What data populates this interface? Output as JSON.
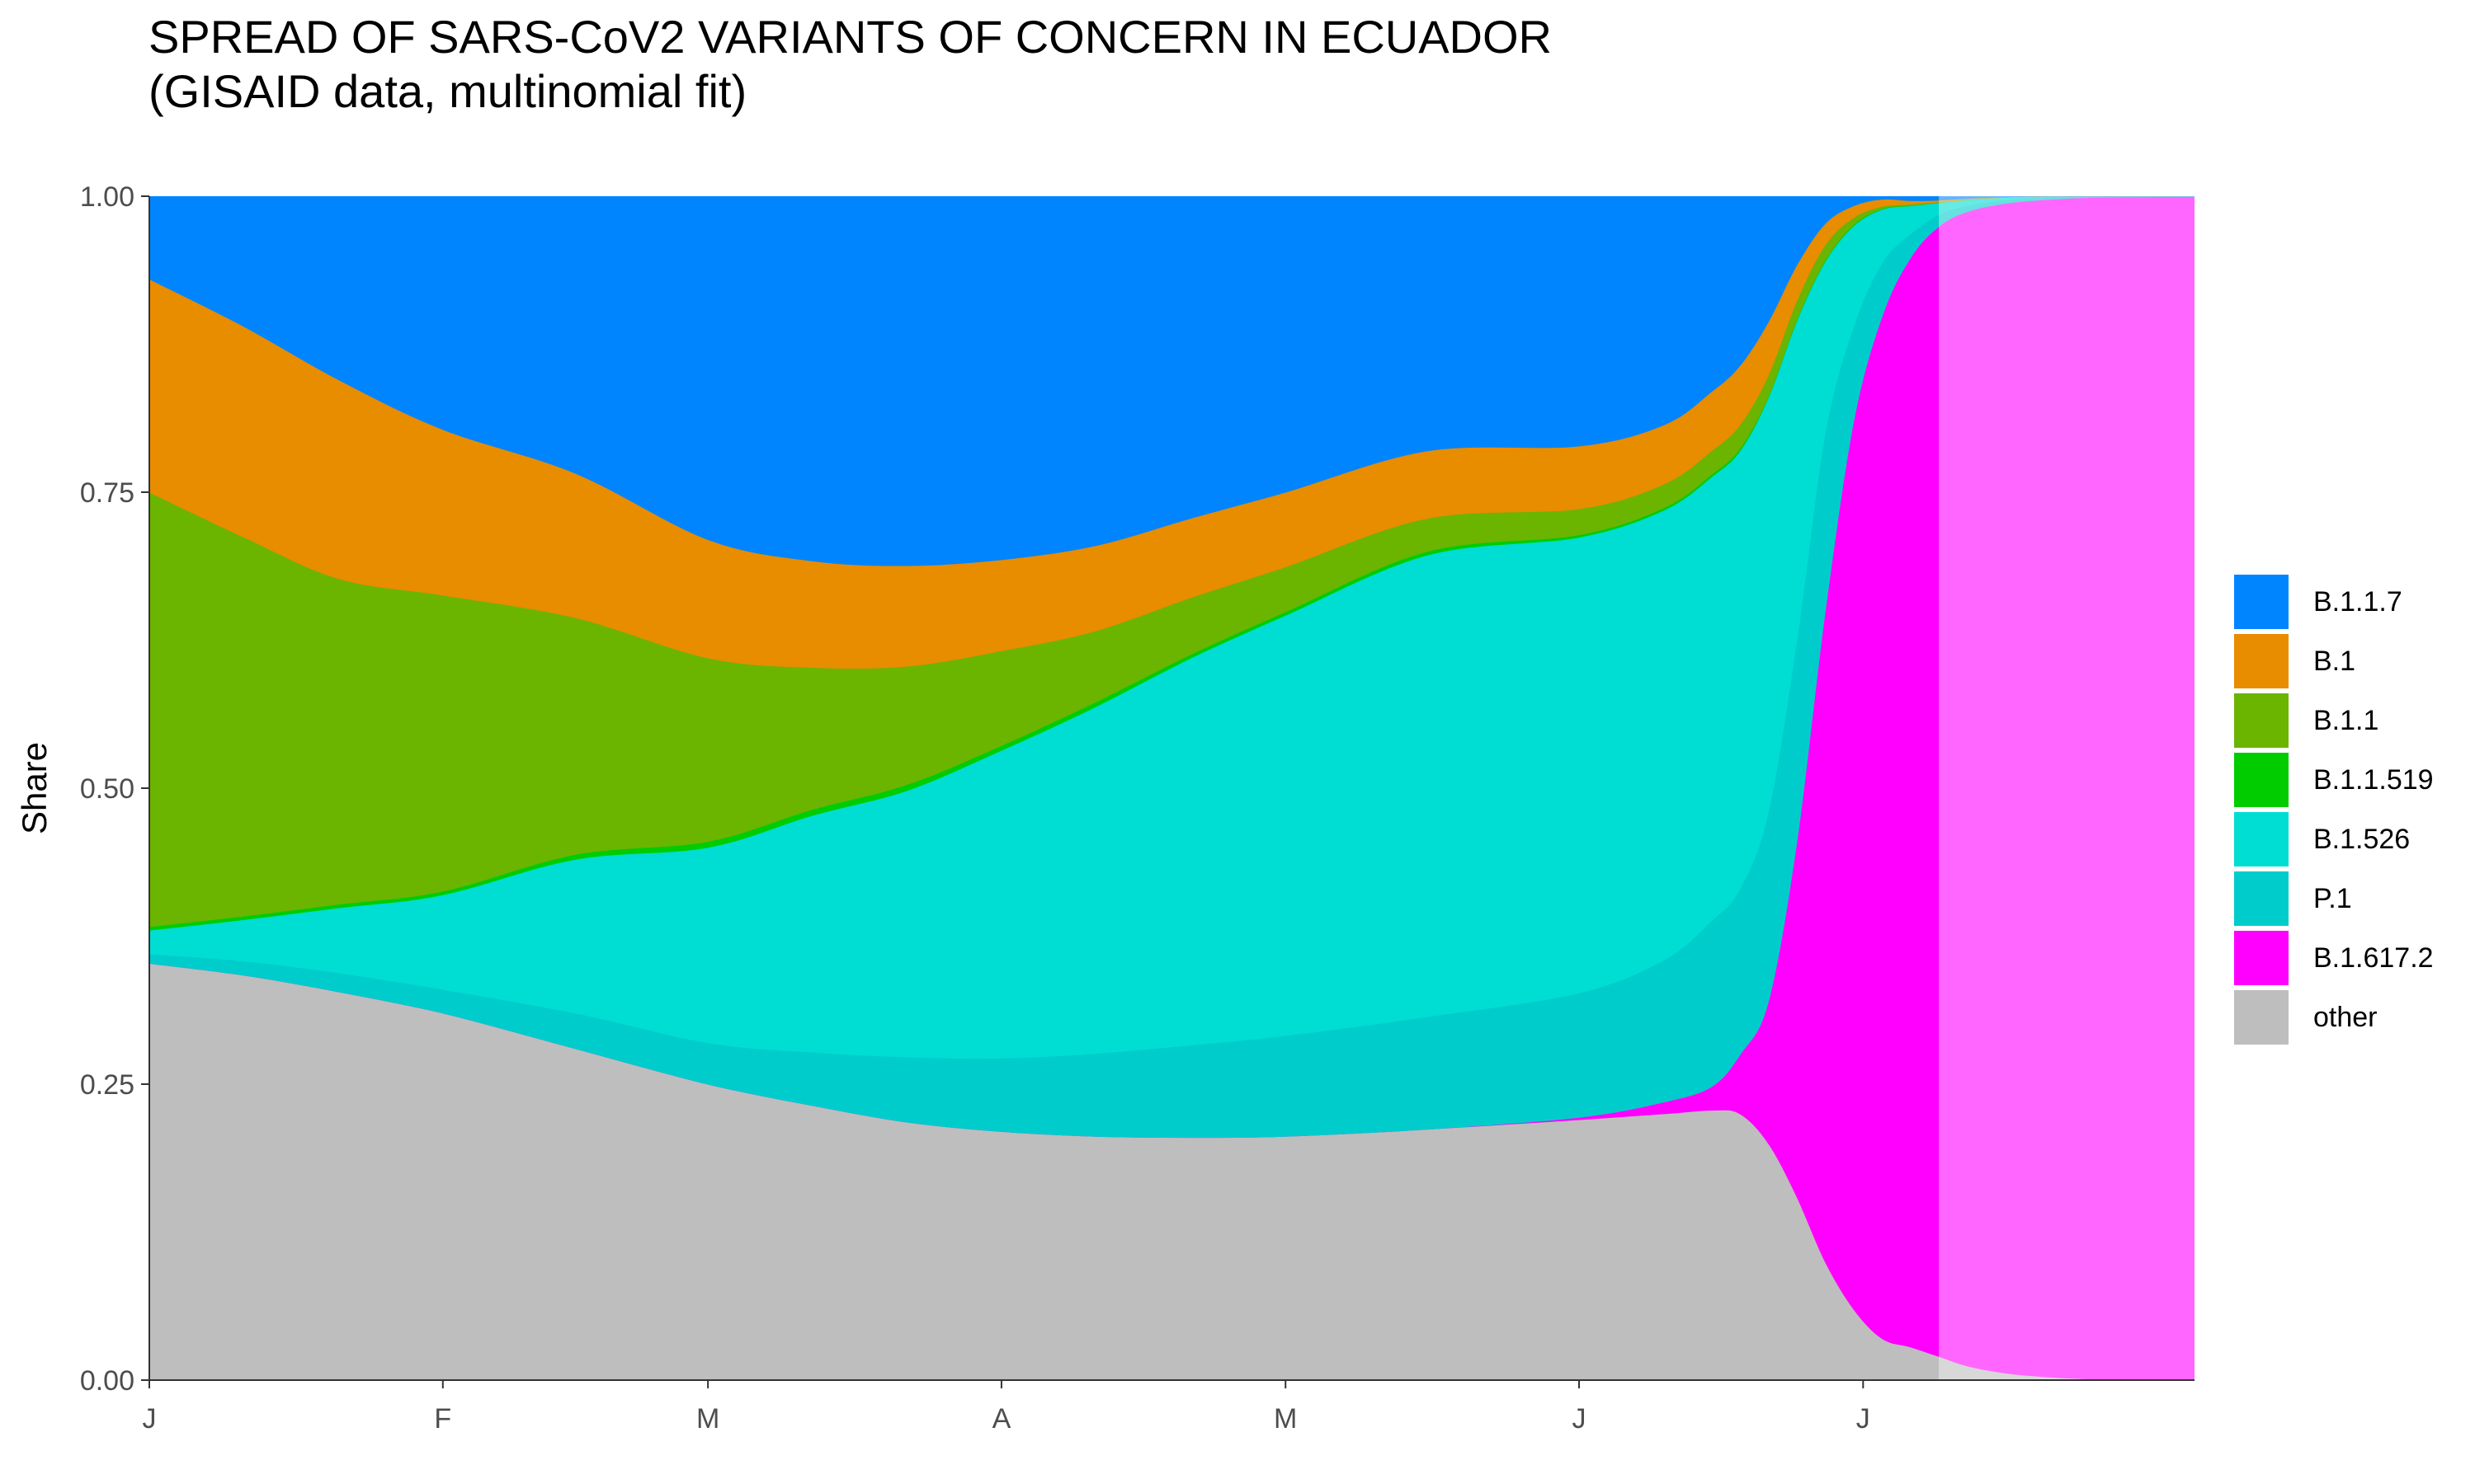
{
  "chart_data": {
    "type": "area",
    "stacked": true,
    "normalized": true,
    "title": "SPREAD OF SARS-CoV2 VARIANTS OF CONCERN IN ECUADOR",
    "subtitle": "(GISAID data, multinomial fit)",
    "xlabel": "",
    "ylabel": "Share",
    "ylim": [
      0,
      1
    ],
    "y_ticks": [
      0,
      0.25,
      0.5,
      0.75,
      1
    ],
    "y_tick_labels": [
      "0.00",
      "0.25",
      "0.50",
      "0.75",
      "1.00"
    ],
    "x_ticks": [
      0,
      31,
      59,
      90,
      120,
      151,
      181
    ],
    "x_tick_labels": [
      "J",
      "F",
      "M",
      "A",
      "M",
      "J",
      "J"
    ],
    "xlim": [
      0,
      216
    ],
    "grid": false,
    "legend_position": "right",
    "fitted_until": 189,
    "stack_order_bottom_to_top": [
      "other",
      "B.1.617.2",
      "P.1",
      "B.1.526",
      "B.1.1.519",
      "B.1.1",
      "B.1",
      "B.1.1.7"
    ],
    "legend_order": [
      "B.1.1.7",
      "B.1",
      "B.1.1",
      "B.1.1.519",
      "B.1.526",
      "P.1",
      "B.1.617.2",
      "other"
    ],
    "colors": {
      "B.1.1.7": "#0085FF",
      "B.1": "#E88C00",
      "B.1.1": "#6BB400",
      "B.1.1.519": "#00CC00",
      "B.1.526": "#00DDD2",
      "P.1": "#00CCCC",
      "B.1.617.2": "#FF00FF",
      "other": "#BEBEBE"
    },
    "x": [
      0,
      10,
      20,
      31,
      45,
      59,
      70,
      80,
      90,
      100,
      110,
      120,
      135,
      151,
      160,
      165,
      168,
      171,
      174,
      177,
      180,
      183,
      186,
      189,
      192,
      196,
      200,
      205,
      210,
      216
    ],
    "series": [
      {
        "name": "other",
        "values": [
          0.352,
          0.342,
          0.328,
          0.31,
          0.28,
          0.25,
          0.232,
          0.218,
          0.21,
          0.206,
          0.205,
          0.206,
          0.212,
          0.22,
          0.225,
          0.228,
          0.225,
          0.2,
          0.155,
          0.1,
          0.06,
          0.035,
          0.028,
          0.02,
          0.012,
          0.006,
          0.003,
          0.001,
          0.0005,
          0.0003
        ]
      },
      {
        "name": "B.1.617.2",
        "values": [
          0,
          0,
          0,
          0,
          0,
          0,
          0,
          0,
          0,
          0,
          0,
          0,
          0,
          0.002,
          0.01,
          0.02,
          0.05,
          0.12,
          0.3,
          0.55,
          0.75,
          0.86,
          0.92,
          0.955,
          0.975,
          0.988,
          0.994,
          0.998,
          0.999,
          0.9995
        ]
      },
      {
        "name": "P.1",
        "values": [
          0.008,
          0.012,
          0.016,
          0.02,
          0.03,
          0.035,
          0.045,
          0.055,
          0.062,
          0.07,
          0.078,
          0.085,
          0.095,
          0.105,
          0.12,
          0.14,
          0.14,
          0.16,
          0.17,
          0.15,
          0.08,
          0.045,
          0.02,
          0.01,
          0.005,
          0.003,
          0.002,
          0.0005,
          0.0003,
          0.0001
        ]
      },
      {
        "name": "B.1.526",
        "values": [
          0.02,
          0.035,
          0.055,
          0.08,
          0.13,
          0.165,
          0.2,
          0.225,
          0.26,
          0.293,
          0.327,
          0.355,
          0.39,
          0.385,
          0.38,
          0.375,
          0.37,
          0.35,
          0.27,
          0.145,
          0.085,
          0.045,
          0.024,
          0.01,
          0.005,
          0.002,
          0.0008,
          0.0003,
          0.0001,
          0.0001
        ]
      },
      {
        "name": "B.1.1.519",
        "values": [
          0.003,
          0.003,
          0.003,
          0.003,
          0.004,
          0.005,
          0.005,
          0.005,
          0.004,
          0.004,
          0.003,
          0.003,
          0.003,
          0.002,
          0.002,
          0.002,
          0.002,
          0.001,
          0.001,
          0.001,
          0.001,
          0.0005,
          0.0003,
          0.0002,
          0.0001,
          0,
          0,
          0,
          0,
          0
        ]
      },
      {
        "name": "B.1.1",
        "values": [
          0.367,
          0.32,
          0.275,
          0.25,
          0.2,
          0.155,
          0.12,
          0.1,
          0.08,
          0.06,
          0.048,
          0.038,
          0.028,
          0.022,
          0.02,
          0.02,
          0.02,
          0.018,
          0.016,
          0.013,
          0.006,
          0.002,
          0.001,
          0.0005,
          0.0002,
          0.0001,
          0,
          0,
          0,
          0
        ]
      },
      {
        "name": "B.1",
        "values": [
          0.18,
          0.178,
          0.168,
          0.14,
          0.122,
          0.1,
          0.09,
          0.085,
          0.077,
          0.072,
          0.067,
          0.063,
          0.057,
          0.053,
          0.05,
          0.05,
          0.05,
          0.045,
          0.03,
          0.018,
          0.01,
          0.006,
          0.003,
          0.0015,
          0.0008,
          0.0003,
          0.0001,
          0,
          0,
          0
        ]
      },
      {
        "name": "B.1.1.7",
        "values": [
          0.07,
          0.11,
          0.155,
          0.197,
          0.234,
          0.29,
          0.308,
          0.312,
          0.307,
          0.295,
          0.272,
          0.25,
          0.215,
          0.211,
          0.193,
          0.165,
          0.143,
          0.106,
          0.058,
          0.023,
          0.008,
          0.0025,
          0.0037,
          0.0033,
          0.0019,
          0.0006,
          0.0001,
          0.0002,
          0.0001,
          0
        ]
      }
    ]
  }
}
